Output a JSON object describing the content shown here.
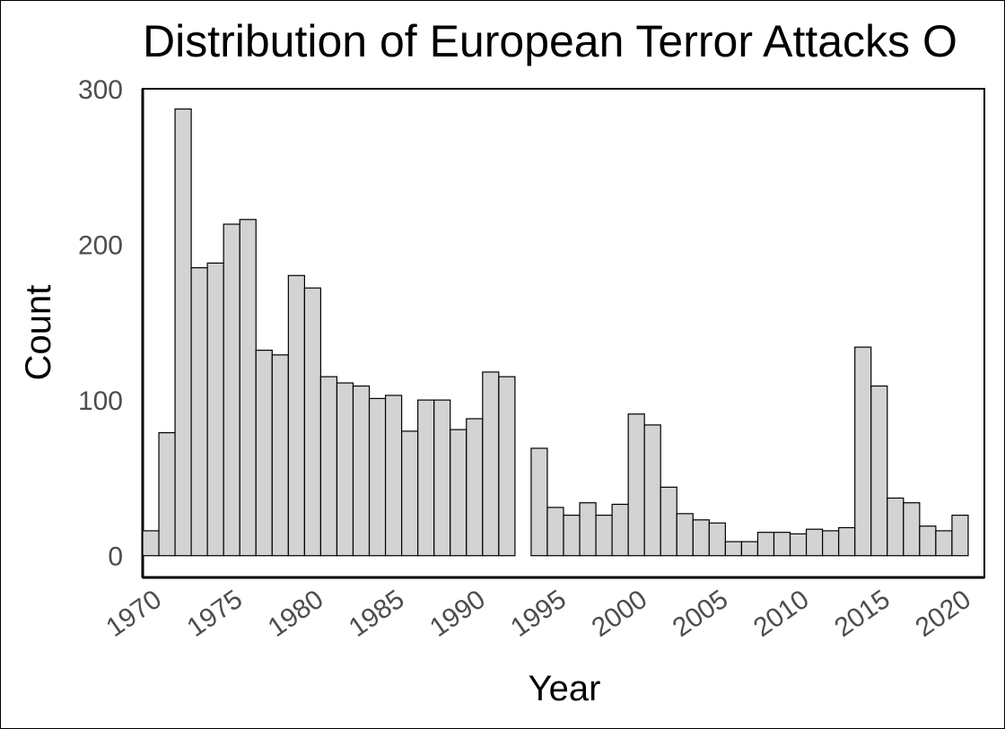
{
  "chart_data": {
    "type": "bar",
    "title": "Distribution of European Terror Attacks O",
    "xlabel": "Year",
    "ylabel": "Count",
    "x": [
      1970,
      1971,
      1972,
      1973,
      1974,
      1975,
      1976,
      1977,
      1978,
      1979,
      1980,
      1981,
      1982,
      1983,
      1984,
      1985,
      1986,
      1987,
      1988,
      1989,
      1990,
      1991,
      1992,
      1993,
      1994,
      1995,
      1996,
      1997,
      1998,
      1999,
      2000,
      2001,
      2002,
      2003,
      2004,
      2005,
      2006,
      2007,
      2008,
      2009,
      2010,
      2011,
      2012,
      2013,
      2014,
      2015,
      2016,
      2017,
      2018,
      2019,
      2020
    ],
    "values": [
      16,
      79,
      287,
      185,
      188,
      213,
      216,
      132,
      129,
      180,
      172,
      115,
      111,
      109,
      101,
      103,
      80,
      100,
      100,
      81,
      88,
      118,
      115,
      0,
      69,
      31,
      26,
      34,
      26,
      33,
      91,
      84,
      44,
      27,
      23,
      21,
      9,
      9,
      15,
      15,
      14,
      17,
      16,
      18,
      134,
      109,
      37,
      34,
      19,
      16,
      26
    ],
    "xlim": [
      1969.5,
      2021.5
    ],
    "ylim": [
      -14,
      300
    ],
    "x_ticks": [
      "1970",
      "1975",
      "1980",
      "1985",
      "1990",
      "1995",
      "2000",
      "2005",
      "2010",
      "2015",
      "2020"
    ],
    "y_ticks": [
      "0",
      "100",
      "200",
      "300"
    ],
    "grid": false,
    "legend": "none",
    "colors": {
      "bar_fill": "#d3d3d3",
      "bar_stroke": "#000000",
      "tick_text": "#4d4d4d",
      "panel_border": "#000000"
    }
  }
}
